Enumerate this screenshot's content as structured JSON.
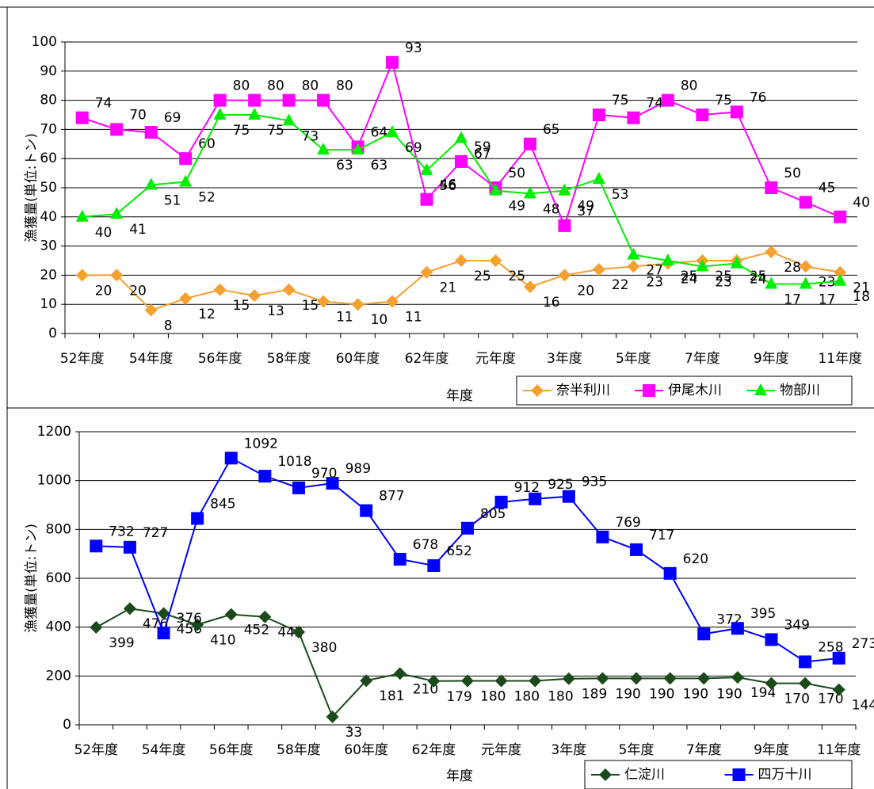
{
  "chart_data": [
    {
      "type": "line",
      "x_label": "年度",
      "y_label": "漁獲量(単位:トン)",
      "categories": [
        "52年度",
        null,
        "54年度",
        null,
        "56年度",
        null,
        "58年度",
        null,
        "60年度",
        null,
        "62年度",
        null,
        "元年度",
        null,
        "3年度",
        null,
        "5年度",
        null,
        "7年度",
        null,
        "9年度",
        null,
        "11年度"
      ],
      "series": [
        {
          "name": "奈半利川",
          "color": "#f5a030",
          "marker": "diamond",
          "values": [
            20,
            20,
            8,
            12,
            15,
            13,
            15,
            11,
            10,
            11,
            21,
            25,
            25,
            16,
            20,
            22,
            23,
            24,
            25,
            25,
            28,
            23,
            21
          ]
        },
        {
          "name": "伊尾木川",
          "color": "#ff00ff",
          "marker": "square",
          "values": [
            74,
            70,
            69,
            60,
            80,
            80,
            80,
            80,
            64,
            93,
            46,
            59,
            50,
            65,
            37,
            75,
            74,
            80,
            75,
            76,
            50,
            45,
            40
          ]
        },
        {
          "name": "物部川",
          "color": "#00ee00",
          "marker": "triangle",
          "values": [
            40,
            41,
            51,
            52,
            75,
            75,
            73,
            63,
            63,
            69,
            56,
            67,
            49,
            48,
            49,
            53,
            27,
            25,
            23,
            24,
            17,
            17,
            18
          ]
        }
      ],
      "ylim": [
        0,
        100
      ],
      "yticks": [
        0,
        10,
        20,
        30,
        40,
        50,
        60,
        70,
        80,
        90,
        100
      ],
      "grid": true
    },
    {
      "type": "line",
      "x_label": "年度",
      "y_label": "漁獲量(単位:トン)",
      "categories": [
        "52年度",
        null,
        "54年度",
        null,
        "56年度",
        null,
        "58年度",
        null,
        "60年度",
        null,
        "62年度",
        null,
        "元年度",
        null,
        "3年度",
        null,
        "5年度",
        null,
        "7年度",
        null,
        "9年度",
        null,
        "11年度"
      ],
      "series": [
        {
          "name": "仁淀川",
          "color": "#1a4a1a",
          "marker": "diamond",
          "values": [
            399,
            476,
            456,
            410,
            452,
            442,
            380,
            33,
            181,
            210,
            179,
            180,
            180,
            180,
            189,
            190,
            190,
            190,
            190,
            194,
            170,
            170,
            144
          ]
        },
        {
          "name": "四万十川",
          "color": "#0000ff",
          "marker": "square",
          "values": [
            732,
            727,
            376,
            845,
            1092,
            1018,
            970,
            989,
            877,
            678,
            652,
            805,
            912,
            925,
            935,
            769,
            717,
            620,
            372,
            395,
            349,
            258,
            273
          ]
        }
      ],
      "ylim": [
        0,
        1200
      ],
      "yticks": [
        0,
        200,
        400,
        600,
        800,
        1000,
        1200
      ],
      "grid": true
    }
  ]
}
